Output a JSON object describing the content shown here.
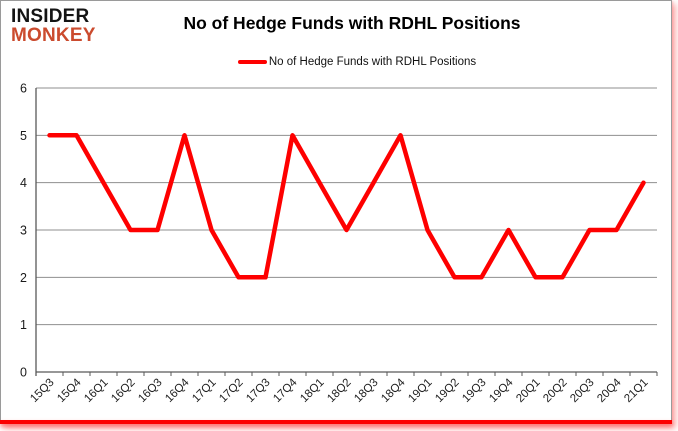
{
  "logo": {
    "line1": "INSIDER",
    "line2": "MONKEY"
  },
  "title": "No of Hedge Funds with RDHL Positions",
  "legend": {
    "label": "No of Hedge Funds with RDHL Positions"
  },
  "colors": {
    "line": "#fe0000",
    "monkey_logo": "#cb4b2e",
    "grid": "#8f8f8f",
    "axis": "#595959",
    "bottom_bar": "#fc0000"
  },
  "chart_data": {
    "type": "line",
    "title": "No of Hedge Funds with RDHL Positions",
    "categories": [
      "15Q3",
      "15Q4",
      "16Q1",
      "16Q2",
      "16Q3",
      "16Q4",
      "17Q1",
      "17Q2",
      "17Q3",
      "17Q4",
      "18Q1",
      "18Q2",
      "18Q3",
      "18Q4",
      "19Q1",
      "19Q2",
      "19Q3",
      "19Q4",
      "20Q1",
      "20Q2",
      "20Q3",
      "20Q4",
      "21Q1"
    ],
    "series": [
      {
        "name": "No of Hedge Funds with RDHL Positions",
        "color": "#fe0000",
        "values": [
          5,
          5,
          4,
          3,
          3,
          5,
          3,
          2,
          2,
          5,
          4,
          3,
          4,
          5,
          3,
          2,
          2,
          3,
          2,
          2,
          3,
          3,
          4
        ]
      }
    ],
    "xlabel": "",
    "ylabel": "",
    "ylim": [
      0,
      6
    ],
    "yticks": [
      0,
      1,
      2,
      3,
      4,
      5,
      6
    ],
    "grid": true,
    "legend_position": "top"
  }
}
